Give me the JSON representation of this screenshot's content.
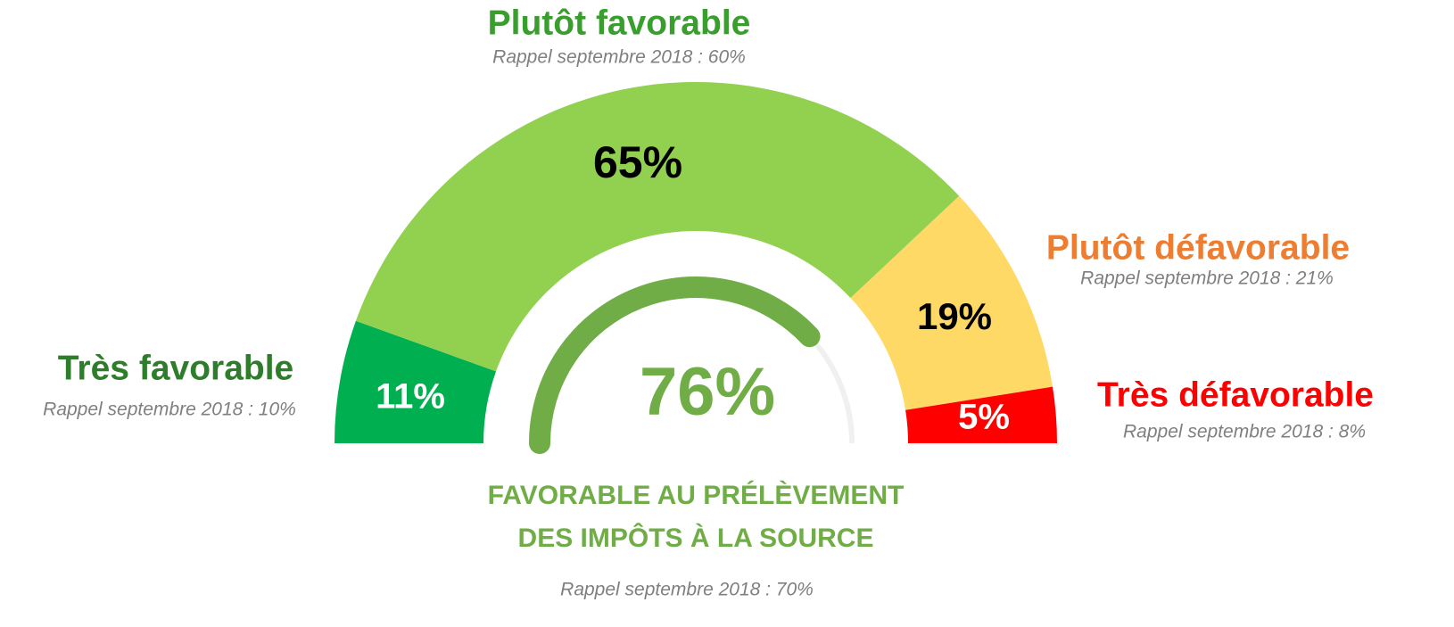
{
  "chart_data": {
    "type": "half-donut",
    "categories": [
      "Très favorable",
      "Plutôt favorable",
      "Plutôt défavorable",
      "Très défavorable"
    ],
    "values": [
      11,
      65,
      19,
      5
    ],
    "value_labels": [
      "11%",
      "65%",
      "19%",
      "5%"
    ],
    "colors": [
      "#00b050",
      "#92d050",
      "#ffd966",
      "#ff0000"
    ],
    "label_colors": [
      "#2e7d2a",
      "#3a9e2f",
      "#ed7d31",
      "#ff0000"
    ],
    "recall_labels": [
      "Rappel septembre 2018 : 10%",
      "Rappel septembre 2018 : 60%",
      "Rappel septembre 2018 : 21%",
      "Rappel septembre 2018 : 8%"
    ],
    "center": {
      "value": 76,
      "value_label": "76%",
      "color": "#70ad47",
      "title": [
        "FAVORABLE AU PRÉLÈVEMENT",
        "DES IMPÔTS À LA SOURCE"
      ],
      "recall": "Rappel septembre 2018 : 70%"
    }
  }
}
